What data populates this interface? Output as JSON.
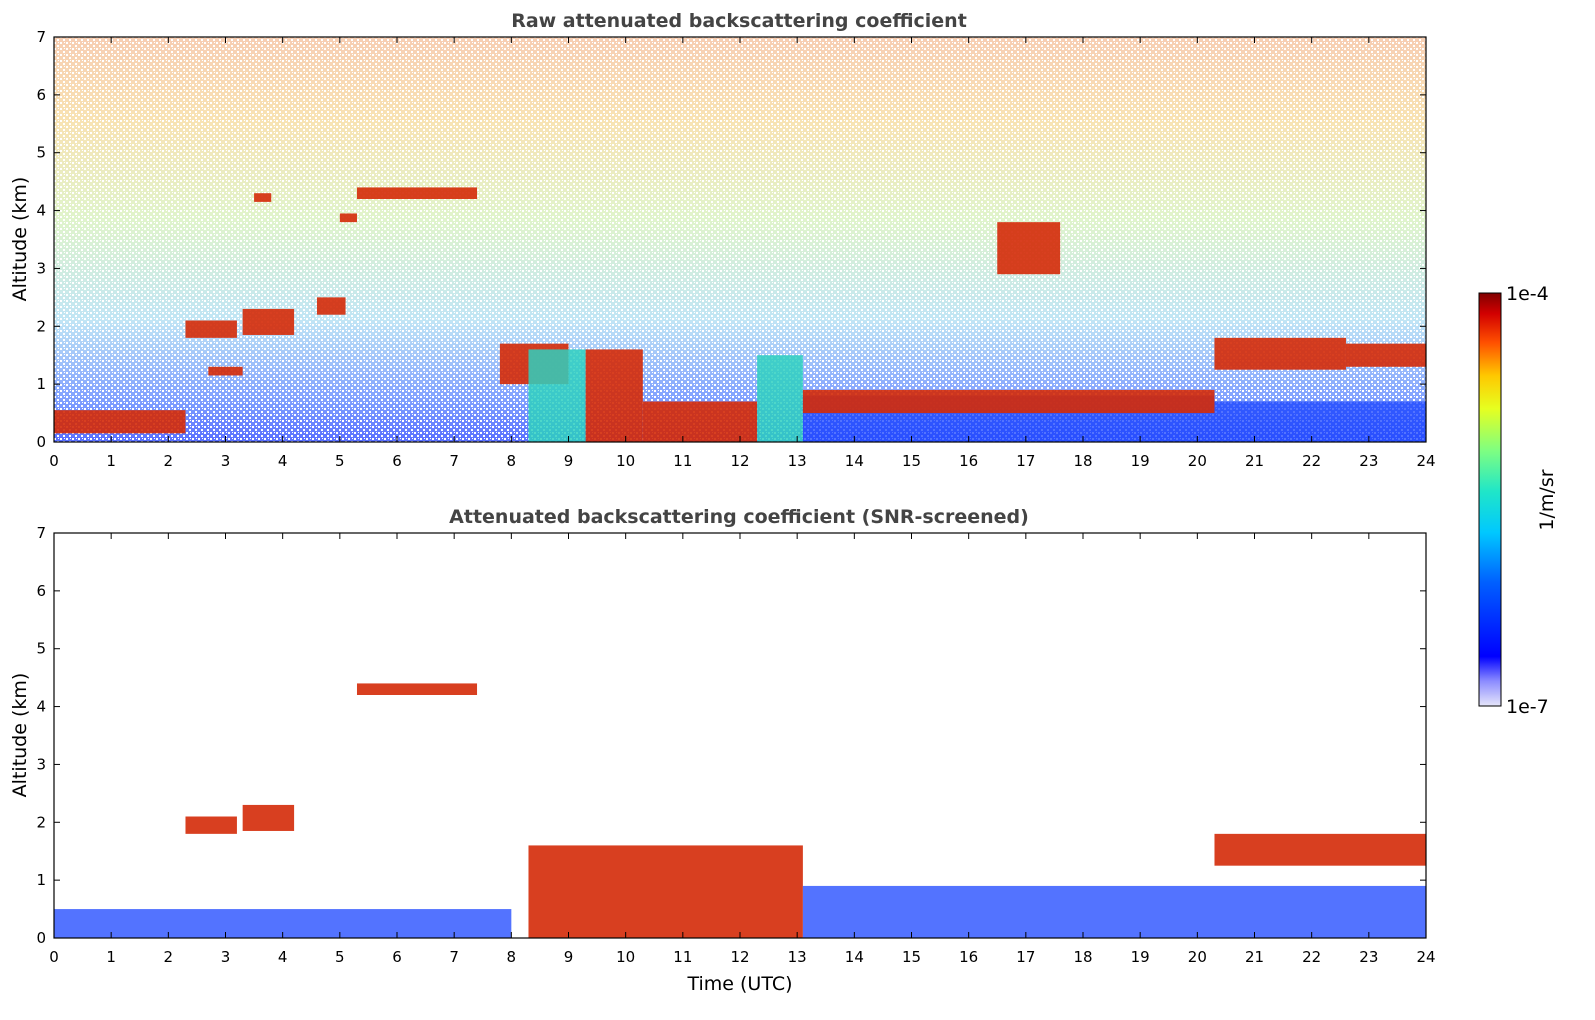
{
  "chart_data": [
    {
      "type": "heatmap",
      "title": "Raw attenuated backscattering coefficient",
      "xlabel": "",
      "ylabel": "Altitude (km)",
      "xlim": [
        0,
        24
      ],
      "ylim": [
        0,
        7
      ],
      "xticks": [
        0,
        1,
        2,
        3,
        4,
        5,
        6,
        7,
        8,
        9,
        10,
        11,
        12,
        13,
        14,
        15,
        16,
        17,
        18,
        19,
        20,
        21,
        22,
        23,
        24
      ],
      "yticks": [
        0,
        1,
        2,
        3,
        4,
        5,
        6,
        7
      ],
      "features": [
        {
          "layer": "boundary-layer",
          "x": [
            0,
            2.3
          ],
          "y": [
            0.15,
            0.55
          ],
          "level": "high"
        },
        {
          "layer": "cloud",
          "x": [
            2.3,
            3.2
          ],
          "y": [
            1.8,
            2.1
          ],
          "level": "high"
        },
        {
          "layer": "cloud",
          "x": [
            2.7,
            3.3
          ],
          "y": [
            1.15,
            1.3
          ],
          "level": "high"
        },
        {
          "layer": "cloud",
          "x": [
            3.3,
            4.2
          ],
          "y": [
            1.85,
            2.3
          ],
          "level": "high"
        },
        {
          "layer": "cloud",
          "x": [
            4.6,
            5.1
          ],
          "y": [
            2.2,
            2.5
          ],
          "level": "high"
        },
        {
          "layer": "cloud",
          "x": [
            3.5,
            3.8
          ],
          "y": [
            4.15,
            4.3
          ],
          "level": "high"
        },
        {
          "layer": "cloud",
          "x": [
            5.0,
            5.3
          ],
          "y": [
            3.8,
            3.95
          ],
          "level": "high"
        },
        {
          "layer": "cloud",
          "x": [
            5.3,
            7.4
          ],
          "y": [
            4.2,
            4.4
          ],
          "level": "high"
        },
        {
          "layer": "cloud",
          "x": [
            7.8,
            9.0
          ],
          "y": [
            1.0,
            1.7
          ],
          "level": "high"
        },
        {
          "layer": "convective",
          "x": [
            8.3,
            9.3
          ],
          "y": [
            0.0,
            1.6
          ],
          "level": "mid"
        },
        {
          "layer": "convective",
          "x": [
            9.3,
            10.3
          ],
          "y": [
            0.0,
            1.6
          ],
          "level": "high"
        },
        {
          "layer": "boundary-layer",
          "x": [
            10.3,
            12.3
          ],
          "y": [
            0.0,
            0.7
          ],
          "level": "high"
        },
        {
          "layer": "convective",
          "x": [
            12.3,
            13.1
          ],
          "y": [
            0.0,
            1.5
          ],
          "level": "mid"
        },
        {
          "layer": "boundary-layer",
          "x": [
            13.1,
            20.3
          ],
          "y": [
            0.0,
            0.8
          ],
          "level": "low"
        },
        {
          "layer": "cloud",
          "x": [
            13.1,
            20.3
          ],
          "y": [
            0.5,
            0.9
          ],
          "level": "high"
        },
        {
          "layer": "cloud",
          "x": [
            16.5,
            17.6
          ],
          "y": [
            2.9,
            3.8
          ],
          "level": "high"
        },
        {
          "layer": "cloud",
          "x": [
            20.3,
            22.6
          ],
          "y": [
            1.25,
            1.8
          ],
          "level": "high"
        },
        {
          "layer": "cloud",
          "x": [
            22.6,
            24.0
          ],
          "y": [
            1.3,
            1.7
          ],
          "level": "high"
        },
        {
          "layer": "boundary-layer",
          "x": [
            20.3,
            24.0
          ],
          "y": [
            0.0,
            0.7
          ],
          "level": "low"
        }
      ]
    },
    {
      "type": "heatmap",
      "title": "Attenuated backscattering coefficient (SNR-screened)",
      "xlabel": "Time (UTC)",
      "ylabel": "Altitude (km)",
      "xlim": [
        0,
        24
      ],
      "ylim": [
        0,
        7
      ],
      "xticks": [
        0,
        1,
        2,
        3,
        4,
        5,
        6,
        7,
        8,
        9,
        10,
        11,
        12,
        13,
        14,
        15,
        16,
        17,
        18,
        19,
        20,
        21,
        22,
        23,
        24
      ],
      "yticks": [
        0,
        1,
        2,
        3,
        4,
        5,
        6,
        7
      ],
      "features": [
        {
          "layer": "boundary-layer",
          "x": [
            0,
            8.0
          ],
          "y": [
            0.0,
            0.5
          ],
          "level": "low"
        },
        {
          "layer": "cloud",
          "x": [
            2.3,
            3.2
          ],
          "y": [
            1.8,
            2.1
          ],
          "level": "high"
        },
        {
          "layer": "cloud",
          "x": [
            3.3,
            4.2
          ],
          "y": [
            1.85,
            2.3
          ],
          "level": "high"
        },
        {
          "layer": "cloud",
          "x": [
            5.3,
            7.4
          ],
          "y": [
            4.2,
            4.4
          ],
          "level": "high"
        },
        {
          "layer": "convective",
          "x": [
            8.3,
            13.1
          ],
          "y": [
            0.0,
            1.6
          ],
          "level": "high"
        },
        {
          "layer": "boundary-layer",
          "x": [
            13.1,
            24.0
          ],
          "y": [
            0.0,
            0.9
          ],
          "level": "low"
        },
        {
          "layer": "cloud",
          "x": [
            20.3,
            24.0
          ],
          "y": [
            1.25,
            1.8
          ],
          "level": "high"
        }
      ]
    }
  ],
  "colorbar": {
    "label": "1/m/sr",
    "max_label": "1e-4",
    "min_label": "1e-7",
    "colormap": "jet"
  }
}
